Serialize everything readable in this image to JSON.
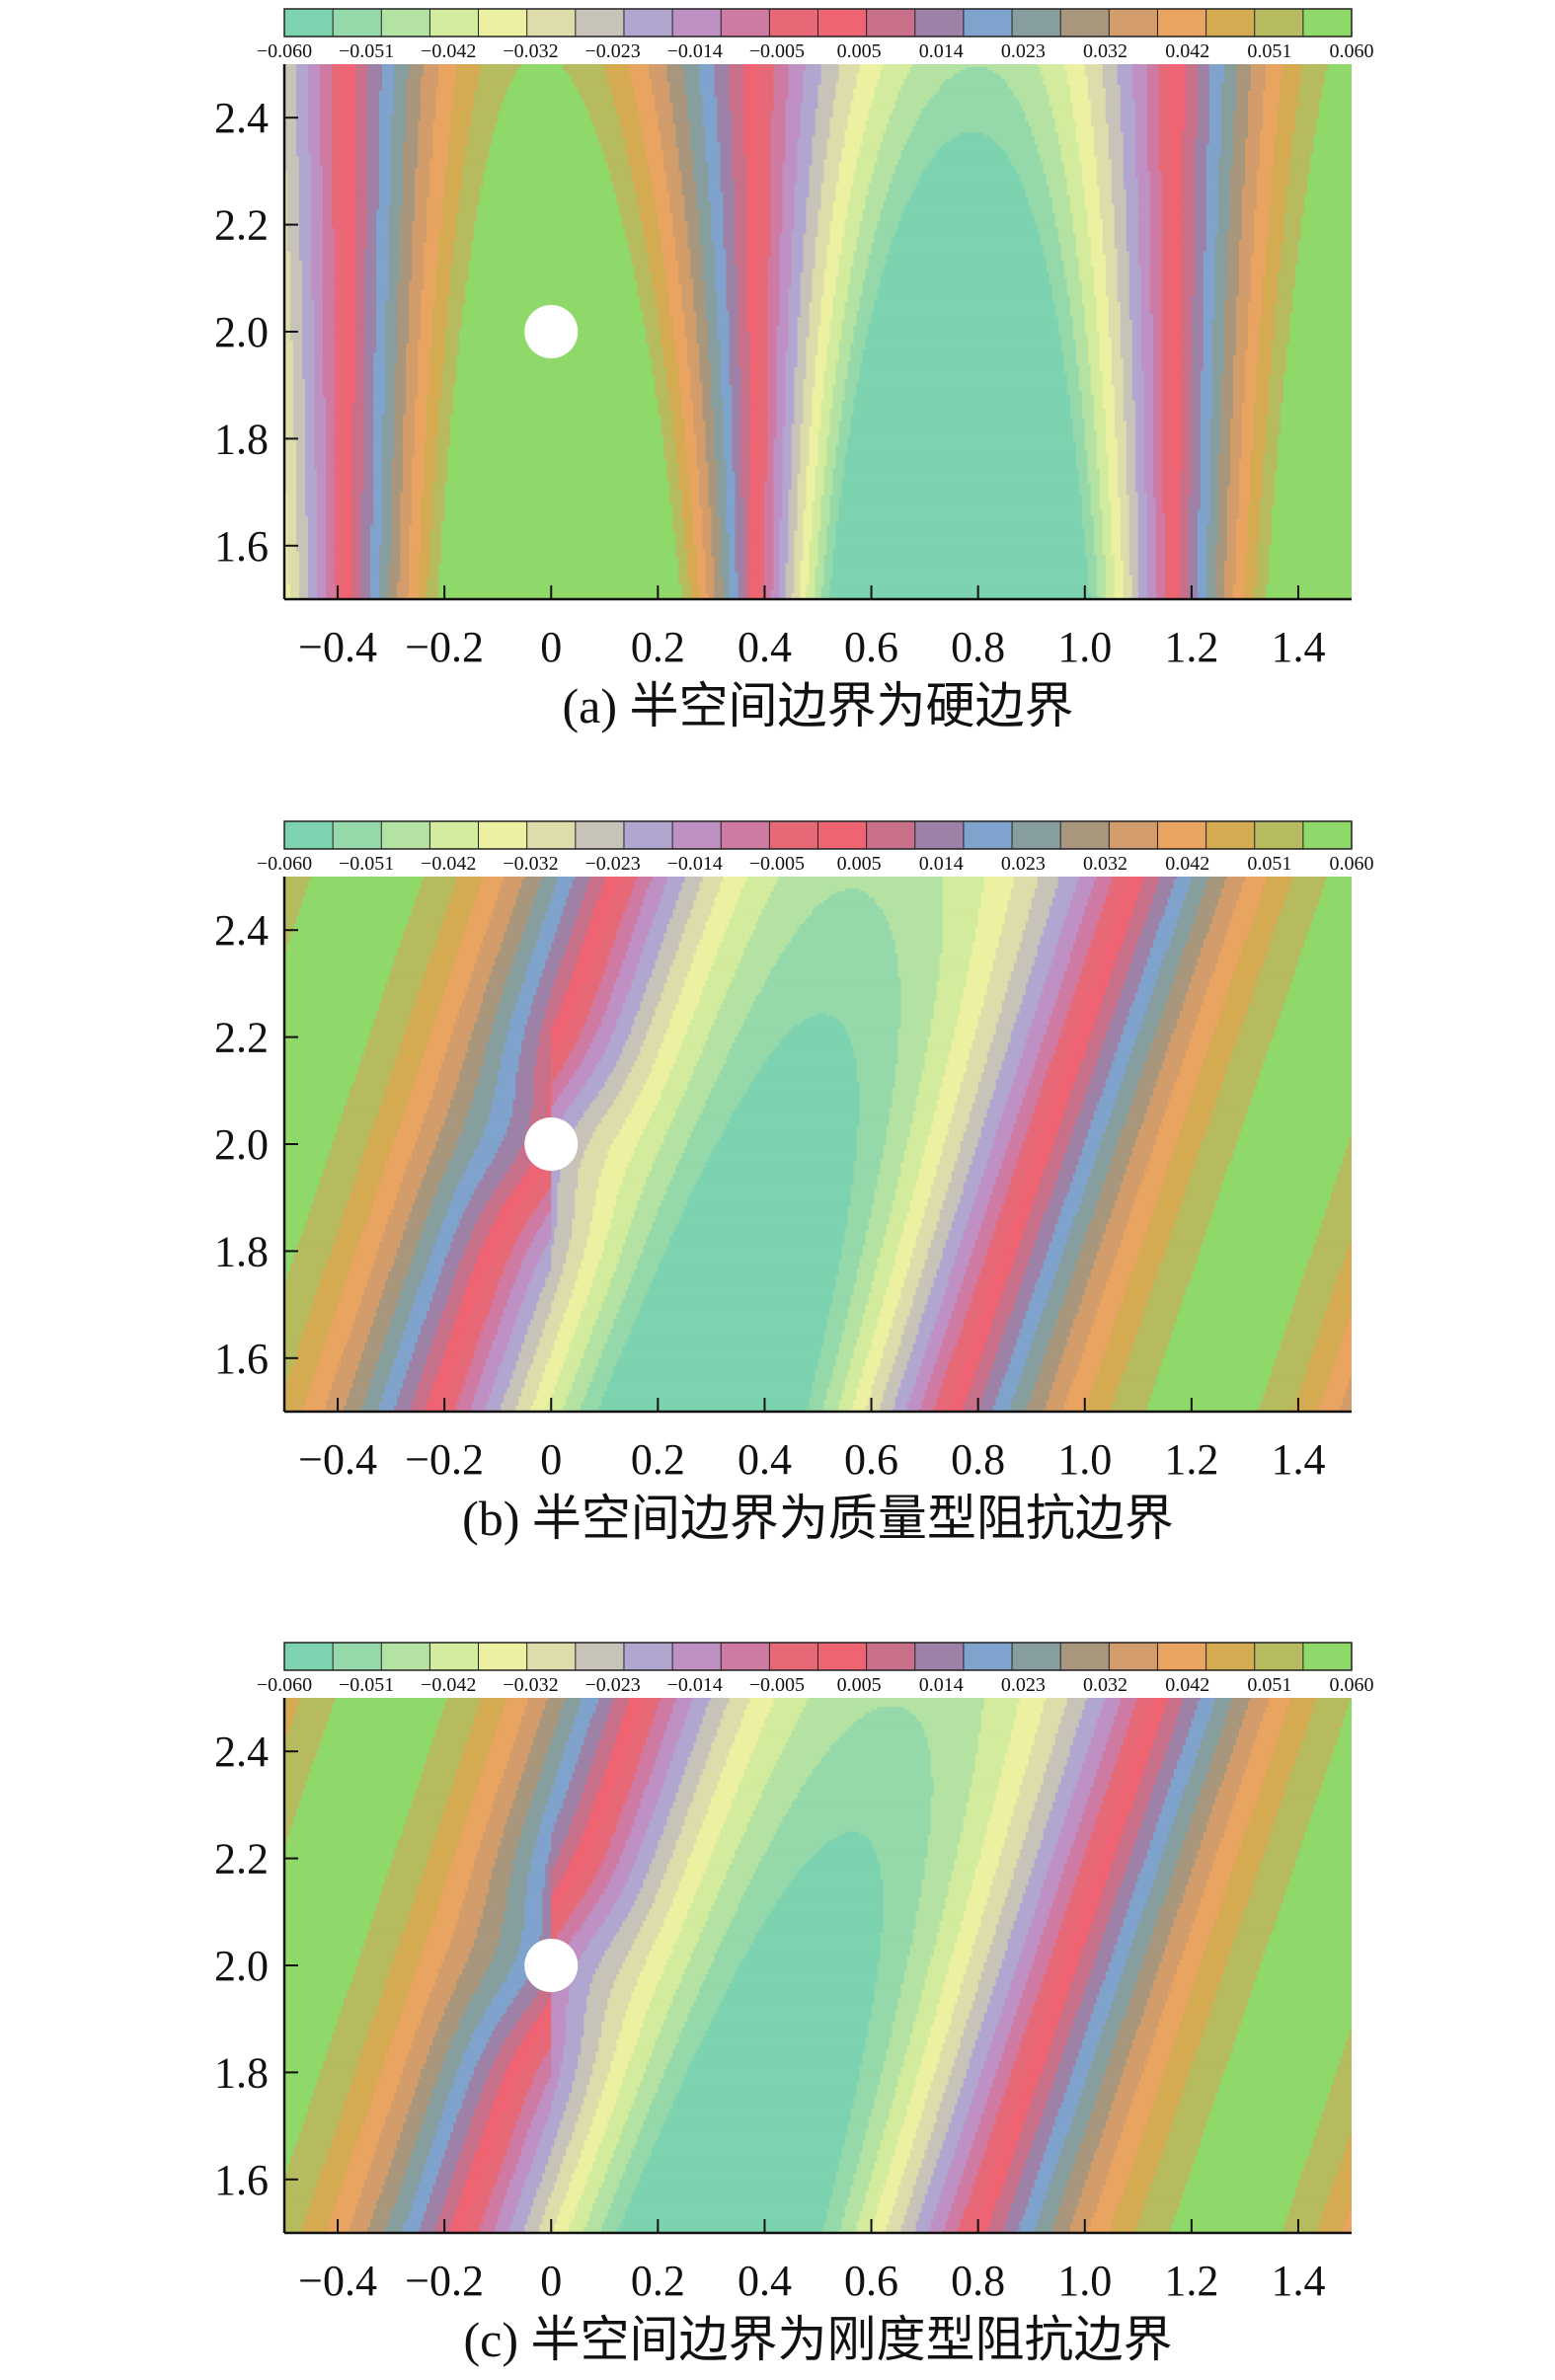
{
  "colormap": [
    "#7dd3b0",
    "#95d9ab",
    "#b4e2a2",
    "#d2eb9c",
    "#ecf1a2",
    "#dedcaa",
    "#c8c3b9",
    "#b1a6cf",
    "#bf90c4",
    "#cf7aa2",
    "#e76877",
    "#ee6473",
    "#c87089",
    "#9e81a7",
    "#7fa3cc",
    "#869f9e",
    "#a8967d",
    "#d29c6b",
    "#e8a460",
    "#d5ab52",
    "#b7bb5f",
    "#8fd86a"
  ],
  "chart_data": [
    {
      "type": "heatmap",
      "panel": "a",
      "caption": "(a) 半空间边界为硬边界",
      "xticks": [
        "−0.4",
        "−0.2",
        "0",
        "0.2",
        "0.4",
        "0.6",
        "0.8",
        "1.0",
        "1.2",
        "1.4"
      ],
      "yticks": [
        "2.4",
        "2.2",
        "2.0",
        "1.8",
        "1.6"
      ],
      "xlim": [
        -0.5,
        1.5
      ],
      "ylim": [
        1.5,
        2.5
      ],
      "scatterer": {
        "x": 0,
        "y": 2.0,
        "radius": 0.05
      },
      "colorbar": {
        "levels": [
          -0.06,
          0.06
        ],
        "tick_labels": [
          "−0.060",
          "−0.051",
          "−0.042",
          "−0.032",
          "−0.023",
          "−0.014",
          "−0.005",
          "0.005",
          "0.014",
          "0.023",
          "0.032",
          "0.042",
          "0.051",
          "0.060"
        ]
      },
      "field_model": {
        "k": 4.05,
        "tilt": 0.0,
        "amp": 0.064,
        "lens": 0.55,
        "lens_x": 0.55,
        "lens_w": 0.55,
        "warp": 0.0,
        "yfade": 0.35,
        "phase": 0.0
      }
    },
    {
      "type": "heatmap",
      "panel": "b",
      "caption": "(b) 半空间边界为质量型阻抗边界",
      "xticks": [
        "−0.4",
        "−0.2",
        "0",
        "0.2",
        "0.4",
        "0.6",
        "0.8",
        "1.0",
        "1.2",
        "1.4"
      ],
      "yticks": [
        "2.4",
        "2.2",
        "2.0",
        "1.8",
        "1.6"
      ],
      "xlim": [
        -0.5,
        1.5
      ],
      "ylim": [
        1.5,
        2.5
      ],
      "scatterer": {
        "x": 0,
        "y": 2.0,
        "radius": 0.05
      },
      "colorbar": {
        "levels": [
          -0.06,
          0.06
        ],
        "tick_labels": [
          "−0.060",
          "−0.051",
          "−0.042",
          "−0.032",
          "−0.023",
          "−0.014",
          "−0.005",
          "0.005",
          "0.014",
          "0.023",
          "0.032",
          "0.042",
          "0.051",
          "0.060"
        ]
      },
      "field_model": {
        "k": 3.3,
        "tilt": 0.34,
        "amp": 0.058,
        "lens": 0.45,
        "lens_x": 0.52,
        "lens_w": 0.32,
        "warp": 0.05,
        "yfade": 0.0,
        "phase": 1.7
      }
    },
    {
      "type": "heatmap",
      "panel": "c",
      "caption": "(c) 半空间边界为刚度型阻抗边界",
      "xticks": [
        "−0.4",
        "−0.2",
        "0",
        "0.2",
        "0.4",
        "0.6",
        "0.8",
        "1.0",
        "1.2",
        "1.4"
      ],
      "yticks": [
        "2.4",
        "2.2",
        "2.0",
        "1.8",
        "1.6"
      ],
      "xlim": [
        -0.5,
        1.5
      ],
      "ylim": [
        1.5,
        2.5
      ],
      "scatterer": {
        "x": 0,
        "y": 2.0,
        "radius": 0.05
      },
      "colorbar": {
        "levels": [
          -0.06,
          0.06
        ],
        "tick_labels": [
          "−0.060",
          "−0.051",
          "−0.042",
          "−0.032",
          "−0.023",
          "−0.014",
          "−0.005",
          "0.005",
          "0.014",
          "0.023",
          "0.032",
          "0.042",
          "0.051",
          "0.060"
        ]
      },
      "field_model": {
        "k": 3.3,
        "tilt": 0.34,
        "amp": 0.058,
        "lens": 0.4,
        "lens_x": 0.5,
        "lens_w": 0.32,
        "warp": 0.05,
        "yfade": 0.0,
        "phase": 1.55
      }
    }
  ]
}
